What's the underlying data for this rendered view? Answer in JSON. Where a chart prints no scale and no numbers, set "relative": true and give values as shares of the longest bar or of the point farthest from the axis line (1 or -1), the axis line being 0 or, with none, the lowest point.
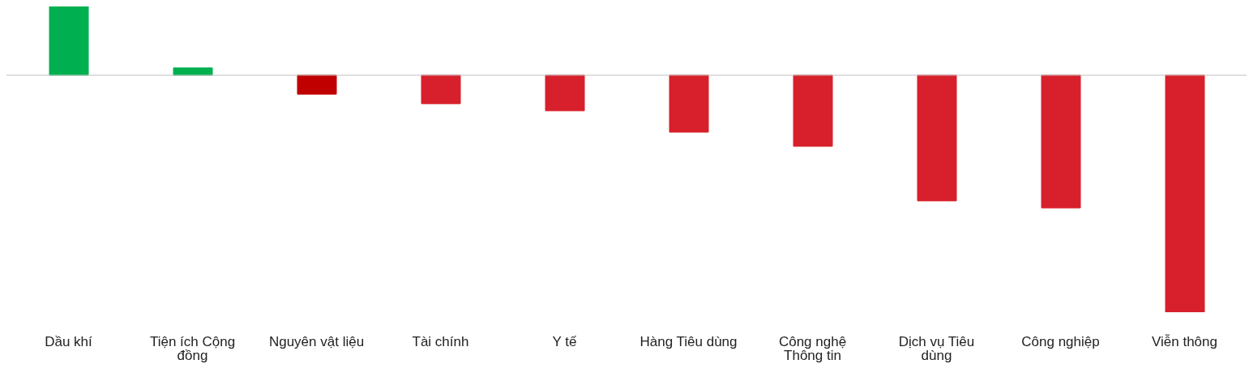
{
  "chart_data": {
    "type": "bar",
    "relative": true,
    "categories": [
      "Dầu khí",
      "Tiện ích Cộng đồng",
      "Nguyên vật liệu",
      "Tài chính",
      "Y tế",
      "Hàng Tiêu dùng",
      "Công nghệ Thông tin",
      "Dịch vụ Tiêu dùng",
      "Công nghiệp",
      "Viễn thông"
    ],
    "values": [
      0.29,
      0.031,
      -0.08,
      -0.12,
      -0.15,
      -0.24,
      -0.3,
      -0.53,
      -0.56,
      -1
    ],
    "colors": [
      "#00b050",
      "#00b050",
      "#c00000",
      "#d7202b",
      "#d7202b",
      "#d7202b",
      "#d7202b",
      "#d7202b",
      "#d7202b",
      "#d7202b"
    ],
    "grid": false,
    "legend": false
  }
}
